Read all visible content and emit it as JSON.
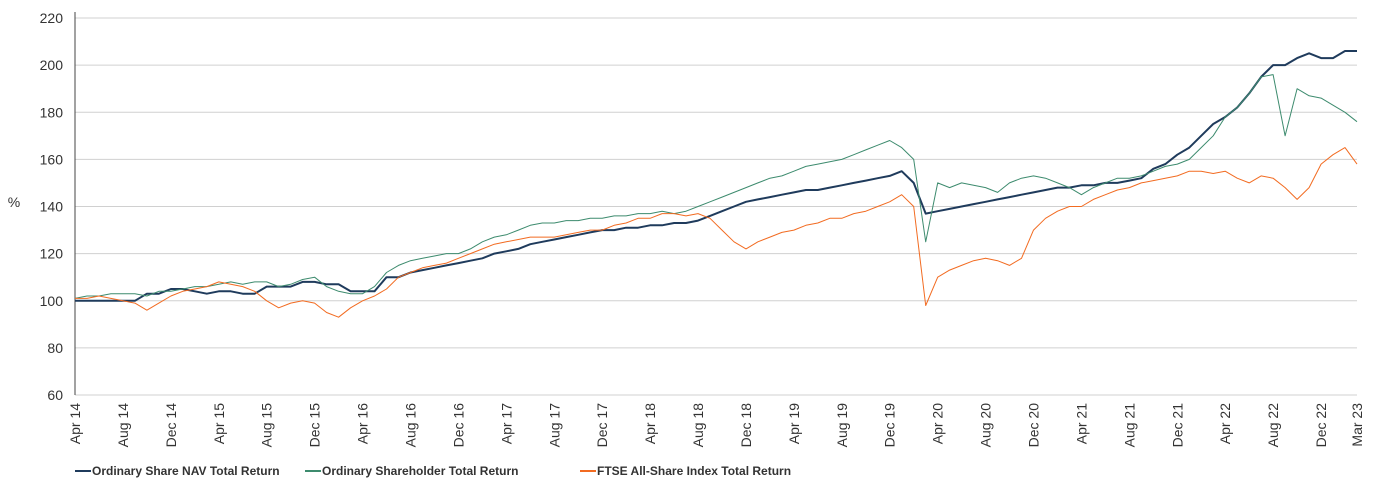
{
  "chart_data": {
    "type": "line",
    "y_label": "%",
    "ylim": [
      60,
      220
    ],
    "yticks": [
      60,
      80,
      100,
      120,
      140,
      160,
      180,
      200,
      220
    ],
    "grid": true,
    "legend": "bottom",
    "categories": [
      "Apr 14",
      null,
      null,
      null,
      "Aug 14",
      null,
      null,
      null,
      "Dec 14",
      null,
      null,
      null,
      "Apr 15",
      null,
      null,
      null,
      "Aug 15",
      null,
      null,
      null,
      "Dec 15",
      null,
      null,
      null,
      "Apr 16",
      null,
      null,
      null,
      "Aug 16",
      null,
      null,
      null,
      "Dec 16",
      null,
      null,
      null,
      "Apr 17",
      null,
      null,
      null,
      "Aug 17",
      null,
      null,
      null,
      "Dec 17",
      null,
      null,
      null,
      "Apr 18",
      null,
      null,
      null,
      "Aug 18",
      null,
      null,
      null,
      "Dec 18",
      null,
      null,
      null,
      "Apr 19",
      null,
      null,
      null,
      "Aug 19",
      null,
      null,
      null,
      "Dec 19",
      null,
      null,
      null,
      "Apr 20",
      null,
      null,
      null,
      "Aug 20",
      null,
      null,
      null,
      "Dec 20",
      null,
      null,
      null,
      "Apr 21",
      null,
      null,
      null,
      "Aug 21",
      null,
      null,
      null,
      "Dec 21",
      null,
      null,
      null,
      "Apr 22",
      null,
      null,
      null,
      "Aug 22",
      null,
      null,
      null,
      "Dec 22",
      null,
      null,
      "Mar 23"
    ],
    "series": [
      {
        "name": "Ordinary Share NAV Total Return",
        "color": "#1f3b5c",
        "width": 2,
        "values": [
          100,
          100,
          100,
          100,
          100,
          100,
          103,
          103,
          105,
          105,
          104,
          103,
          104,
          104,
          103,
          103,
          106,
          106,
          106,
          108,
          108,
          107,
          107,
          104,
          104,
          104,
          110,
          110,
          112,
          113,
          114,
          115,
          116,
          117,
          118,
          120,
          121,
          122,
          124,
          125,
          126,
          127,
          128,
          129,
          130,
          130,
          131,
          131,
          132,
          132,
          133,
          133,
          134,
          136,
          138,
          140,
          142,
          143,
          144,
          145,
          146,
          147,
          147,
          148,
          149,
          150,
          151,
          152,
          153,
          155,
          150,
          137,
          138,
          139,
          140,
          141,
          142,
          143,
          144,
          145,
          146,
          147,
          148,
          148,
          149,
          149,
          150,
          150,
          151,
          152,
          156,
          158,
          162,
          165,
          170,
          175,
          178,
          182,
          188,
          195,
          200,
          200,
          203,
          205,
          203,
          203,
          206,
          206
        ]
      },
      {
        "name": "Ordinary Shareholder Total Return",
        "color": "#3d8b6e",
        "width": 1,
        "values": [
          101,
          102,
          102,
          103,
          103,
          103,
          102,
          104,
          104,
          105,
          106,
          106,
          107,
          108,
          107,
          108,
          108,
          106,
          107,
          109,
          110,
          106,
          104,
          103,
          103,
          106,
          112,
          115,
          117,
          118,
          119,
          120,
          120,
          122,
          125,
          127,
          128,
          130,
          132,
          133,
          133,
          134,
          134,
          135,
          135,
          136,
          136,
          137,
          137,
          138,
          137,
          138,
          140,
          142,
          144,
          146,
          148,
          150,
          152,
          153,
          155,
          157,
          158,
          159,
          160,
          162,
          164,
          166,
          168,
          165,
          160,
          125,
          150,
          148,
          150,
          149,
          148,
          146,
          150,
          152,
          153,
          152,
          150,
          148,
          145,
          148,
          150,
          152,
          152,
          153,
          155,
          157,
          158,
          160,
          165,
          170,
          178,
          182,
          188,
          195,
          196,
          170,
          190,
          187,
          186,
          183,
          180,
          176
        ]
      },
      {
        "name": "FTSE All-Share Index Total Return",
        "color": "#f26b21",
        "width": 1,
        "values": [
          101,
          101,
          102,
          101,
          100,
          99,
          96,
          99,
          102,
          104,
          105,
          106,
          108,
          107,
          106,
          104,
          100,
          97,
          99,
          100,
          99,
          95,
          93,
          97,
          100,
          102,
          105,
          110,
          112,
          114,
          115,
          116,
          118,
          120,
          122,
          124,
          125,
          126,
          127,
          127,
          127,
          128,
          129,
          130,
          130,
          132,
          133,
          135,
          135,
          137,
          137,
          136,
          137,
          135,
          130,
          125,
          122,
          125,
          127,
          129,
          130,
          132,
          133,
          135,
          135,
          137,
          138,
          140,
          142,
          145,
          140,
          98,
          110,
          113,
          115,
          117,
          118,
          117,
          115,
          118,
          130,
          135,
          138,
          140,
          140,
          143,
          145,
          147,
          148,
          150,
          151,
          152,
          153,
          155,
          155,
          154,
          155,
          152,
          150,
          153,
          152,
          148,
          143,
          148,
          158,
          162,
          165,
          158
        ]
      }
    ]
  }
}
